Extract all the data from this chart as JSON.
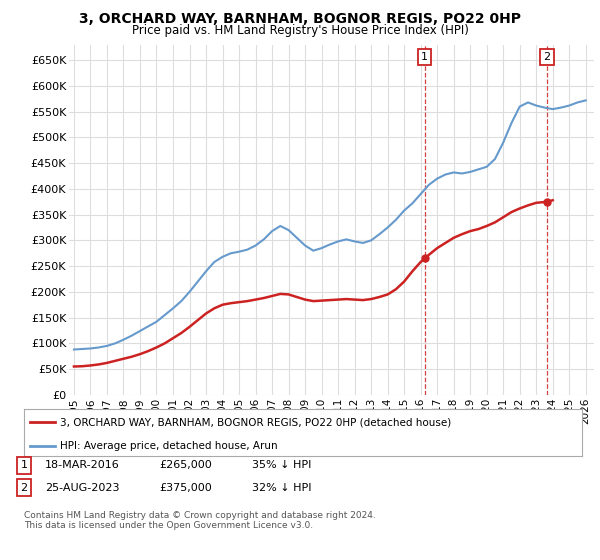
{
  "title": "3, ORCHARD WAY, BARNHAM, BOGNOR REGIS, PO22 0HP",
  "subtitle": "Price paid vs. HM Land Registry's House Price Index (HPI)",
  "ylim": [
    0,
    680000
  ],
  "yticks": [
    0,
    50000,
    100000,
    150000,
    200000,
    250000,
    300000,
    350000,
    400000,
    450000,
    500000,
    550000,
    600000,
    650000
  ],
  "ytick_labels": [
    "£0",
    "£50K",
    "£100K",
    "£150K",
    "£200K",
    "£250K",
    "£300K",
    "£350K",
    "£400K",
    "£450K",
    "£500K",
    "£550K",
    "£600K",
    "£650K"
  ],
  "hpi_color": "#6699cc",
  "price_color": "#cc2222",
  "vline1_x": 2016.25,
  "vline2_x": 2023.65,
  "marker1_label": "1",
  "marker2_label": "2",
  "marker1_price": 265000,
  "marker2_price": 375000,
  "marker1_info_date": "18-MAR-2016",
  "marker1_info_price": "£265,000",
  "marker1_info_hpi": "35% ↓ HPI",
  "marker2_info_date": "25-AUG-2023",
  "marker2_info_price": "£375,000",
  "marker2_info_hpi": "32% ↓ HPI",
  "legend_price_label": "3, ORCHARD WAY, BARNHAM, BOGNOR REGIS, PO22 0HP (detached house)",
  "legend_hpi_label": "HPI: Average price, detached house, Arun",
  "footer": "Contains HM Land Registry data © Crown copyright and database right 2024.\nThis data is licensed under the Open Government Licence v3.0.",
  "background_color": "#ffffff",
  "grid_color": "#dddddd",
  "xlim_start": 1994.7,
  "xlim_end": 2026.5,
  "hpi_years": [
    1995,
    1995.5,
    1996,
    1996.5,
    1997,
    1997.5,
    1998,
    1998.5,
    1999,
    1999.5,
    2000,
    2000.5,
    2001,
    2001.5,
    2002,
    2002.5,
    2003,
    2003.5,
    2004,
    2004.5,
    2005,
    2005.5,
    2006,
    2006.5,
    2007,
    2007.5,
    2008,
    2008.5,
    2009,
    2009.5,
    2010,
    2010.5,
    2011,
    2011.5,
    2012,
    2012.5,
    2013,
    2013.5,
    2014,
    2014.5,
    2015,
    2015.5,
    2016,
    2016.5,
    2017,
    2017.5,
    2018,
    2018.5,
    2019,
    2019.5,
    2020,
    2020.5,
    2021,
    2021.5,
    2022,
    2022.5,
    2023,
    2023.5,
    2024,
    2024.5,
    2025,
    2025.5,
    2026
  ],
  "hpi_values": [
    88000,
    89000,
    90000,
    92000,
    95000,
    100000,
    107000,
    115000,
    124000,
    133000,
    142000,
    155000,
    168000,
    182000,
    200000,
    220000,
    240000,
    258000,
    268000,
    275000,
    278000,
    282000,
    290000,
    302000,
    318000,
    328000,
    320000,
    305000,
    290000,
    280000,
    285000,
    292000,
    298000,
    302000,
    298000,
    295000,
    300000,
    312000,
    325000,
    340000,
    358000,
    372000,
    390000,
    408000,
    420000,
    428000,
    432000,
    430000,
    433000,
    438000,
    443000,
    458000,
    490000,
    528000,
    560000,
    568000,
    562000,
    558000,
    555000,
    558000,
    562000,
    568000,
    572000
  ],
  "price_years": [
    1995,
    1995.5,
    1996,
    1996.5,
    1997,
    1997.5,
    1998,
    1998.5,
    1999,
    1999.5,
    2000,
    2000.5,
    2001,
    2001.5,
    2002,
    2002.5,
    2003,
    2003.5,
    2004,
    2004.5,
    2005,
    2005.5,
    2006,
    2006.5,
    2007,
    2007.5,
    2008,
    2008.5,
    2009,
    2009.5,
    2010,
    2010.5,
    2011,
    2011.5,
    2012,
    2012.5,
    2013,
    2013.5,
    2014,
    2014.5,
    2015,
    2015.5,
    2016,
    2016.25,
    2016.5,
    2017,
    2017.5,
    2018,
    2018.5,
    2019,
    2019.5,
    2020,
    2020.5,
    2021,
    2021.5,
    2022,
    2022.5,
    2023,
    2023.65,
    2024
  ],
  "price_values": [
    55000,
    55500,
    57000,
    59000,
    62000,
    66000,
    70000,
    74000,
    79000,
    85000,
    92000,
    100000,
    110000,
    120000,
    132000,
    145000,
    158000,
    168000,
    175000,
    178000,
    180000,
    182000,
    185000,
    188000,
    192000,
    196000,
    195000,
    190000,
    185000,
    182000,
    183000,
    184000,
    185000,
    186000,
    185000,
    184000,
    186000,
    190000,
    195000,
    205000,
    220000,
    240000,
    258000,
    265000,
    272000,
    285000,
    295000,
    305000,
    312000,
    318000,
    322000,
    328000,
    335000,
    345000,
    355000,
    362000,
    368000,
    373000,
    375000,
    378000
  ]
}
